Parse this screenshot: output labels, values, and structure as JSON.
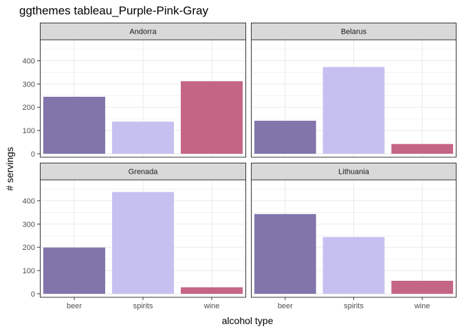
{
  "chart_data": {
    "type": "bar",
    "title": "ggthemes tableau_Purple-Pink-Gray",
    "xlabel": "alcohol type",
    "ylabel": "# servings",
    "categories": [
      "beer",
      "spirits",
      "wine"
    ],
    "colors": [
      "#8175aa",
      "#c6c0f0",
      "#c56585"
    ],
    "ylim": [
      -15,
      490
    ],
    "yticks": [
      0,
      100,
      200,
      300,
      400
    ],
    "grid": true,
    "panel_background": "#ffffff",
    "gridline_color": "#ebebeb",
    "strip_background": "#d9d9d9",
    "panels": [
      {
        "name": "Andorra",
        "values": [
          245,
          138,
          312
        ]
      },
      {
        "name": "Belarus",
        "values": [
          142,
          373,
          42
        ]
      },
      {
        "name": "Grenada",
        "values": [
          199,
          438,
          28
        ]
      },
      {
        "name": "Lithuania",
        "values": [
          343,
          244,
          56
        ]
      }
    ]
  }
}
